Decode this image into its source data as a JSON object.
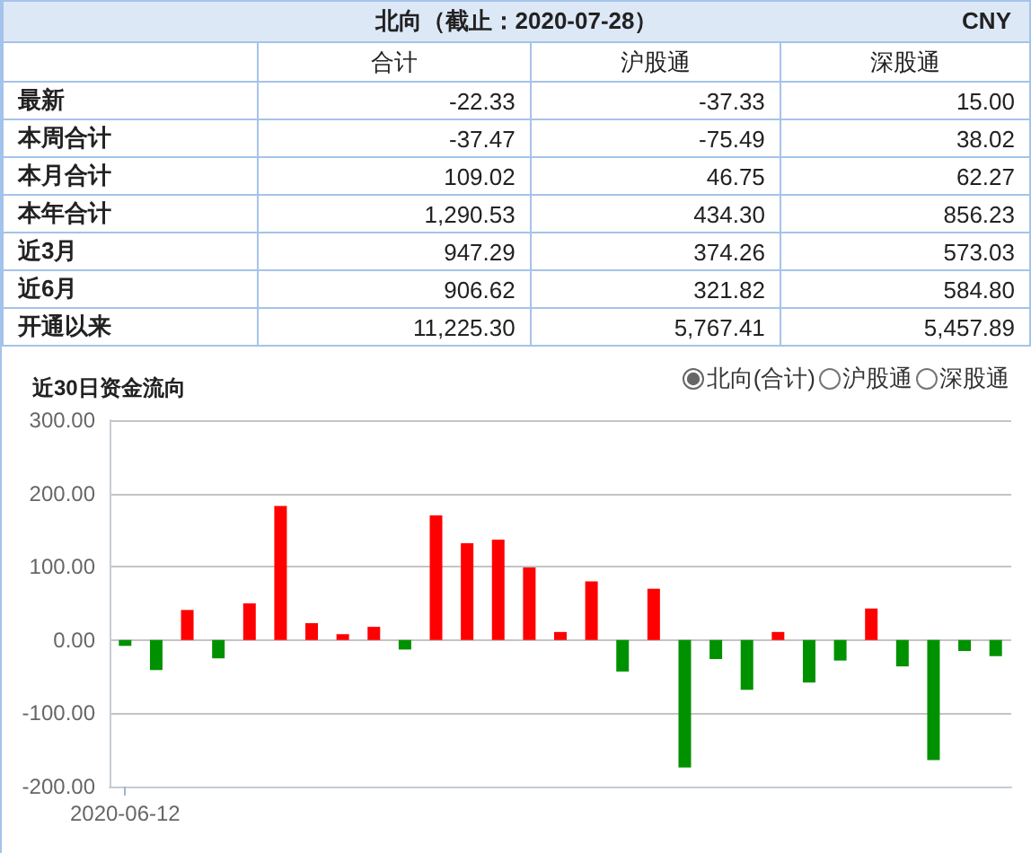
{
  "chart_data": [
    {
      "type": "other",
      "title": "北向（截止：2020-07-28）",
      "annotations": [
        "CNY"
      ],
      "categories": [
        "最新",
        "本周合计",
        "本月合计",
        "本年合计",
        "近3月",
        "近6月",
        "开通以来"
      ],
      "series": [
        {
          "name": "合计",
          "values": [
            -22.33,
            -37.47,
            109.02,
            1290.53,
            947.29,
            906.62,
            11225.3
          ],
          "value_labels": [
            "-22.33",
            "-37.47",
            "109.02",
            "1,290.53",
            "947.29",
            "906.62",
            "11,225.30"
          ]
        },
        {
          "name": "沪股通",
          "values": [
            -37.33,
            -75.49,
            46.75,
            434.3,
            374.26,
            321.82,
            5767.41
          ],
          "value_labels": [
            "-37.33",
            "-75.49",
            "46.75",
            "434.30",
            "374.26",
            "321.82",
            "5,767.41"
          ]
        },
        {
          "name": "深股通",
          "values": [
            15.0,
            38.02,
            62.27,
            856.23,
            573.03,
            584.8,
            5457.89
          ],
          "value_labels": [
            "15.00",
            "38.02",
            "62.27",
            "856.23",
            "573.03",
            "584.80",
            "5,457.89"
          ]
        }
      ]
    },
    {
      "type": "bar",
      "title": "近30日资金流向",
      "annotations": [
        "北向(合计)",
        "沪股通",
        "深股通"
      ],
      "categories": [
        "2020-06-12",
        null,
        null,
        null,
        null,
        null,
        null,
        null,
        null,
        null,
        null,
        null,
        null,
        null,
        null,
        null,
        null,
        null,
        null,
        null,
        null,
        null,
        null,
        null,
        null,
        null,
        null,
        null,
        null
      ],
      "values": [
        -8,
        -41,
        41,
        -25,
        50,
        183,
        23,
        8,
        18,
        -13,
        170,
        132,
        137,
        99,
        11,
        80,
        -43,
        70,
        -174,
        -26,
        -68,
        11,
        -58,
        -28,
        43,
        -36,
        -164,
        -15,
        -22
      ],
      "colors": [
        "#009100",
        "#009100",
        "#ff0000",
        "#009100",
        "#ff0000",
        "#ff0000",
        "#ff0000",
        "#ff0000",
        "#ff0000",
        "#009100",
        "#ff0000",
        "#ff0000",
        "#ff0000",
        "#ff0000",
        "#ff0000",
        "#ff0000",
        "#009100",
        "#ff0000",
        "#009100",
        "#009100",
        "#009100",
        "#ff0000",
        "#009100",
        "#009100",
        "#ff0000",
        "#009100",
        "#009100",
        "#009100",
        "#009100"
      ],
      "ylim": [
        -200,
        300
      ],
      "yticks": [
        {
          "value": -200,
          "label": "-200.00"
        },
        {
          "value": -100,
          "label": "-100.00"
        },
        {
          "value": 0,
          "label": "0.00"
        },
        {
          "value": 100,
          "label": "100.00"
        },
        {
          "value": 200,
          "label": "200.00"
        },
        {
          "value": 300,
          "label": "300.00"
        }
      ],
      "grid": "y"
    }
  ]
}
